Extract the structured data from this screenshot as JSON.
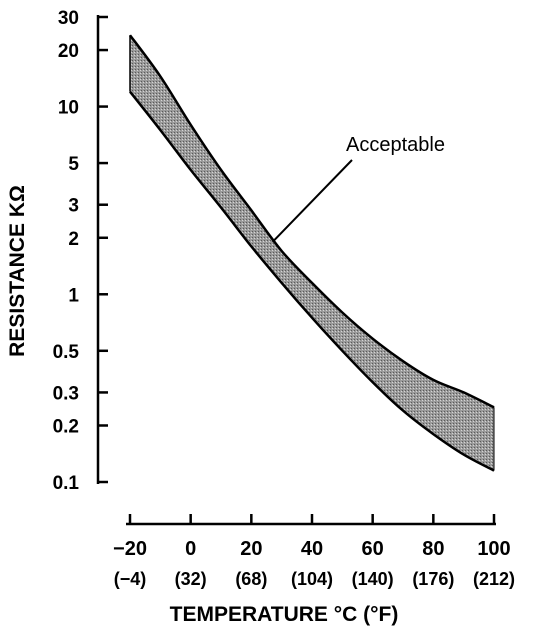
{
  "chart_data": {
    "type": "area",
    "ylabel": "RESISTANCE KΩ",
    "xlabel": "TEMPERATURE °C (°F)",
    "y_scale": "log",
    "ylim": [
      0.1,
      30
    ],
    "xlim": [
      -20,
      100
    ],
    "y_ticks": [
      {
        "value": 30,
        "label": "30"
      },
      {
        "value": 20,
        "label": "20"
      },
      {
        "value": 10,
        "label": "10"
      },
      {
        "value": 5,
        "label": "5"
      },
      {
        "value": 3,
        "label": "3"
      },
      {
        "value": 2,
        "label": "2"
      },
      {
        "value": 1,
        "label": "1"
      },
      {
        "value": 0.5,
        "label": "0.5"
      },
      {
        "value": 0.3,
        "label": "0.3"
      },
      {
        "value": 0.2,
        "label": "0.2"
      },
      {
        "value": 0.1,
        "label": "0.1"
      }
    ],
    "x_ticks": [
      {
        "value": -20,
        "label": "−20",
        "sublabel": "(−4)"
      },
      {
        "value": 0,
        "label": "0",
        "sublabel": "(32)"
      },
      {
        "value": 20,
        "label": "20",
        "sublabel": "(68)"
      },
      {
        "value": 40,
        "label": "40",
        "sublabel": "(104)"
      },
      {
        "value": 60,
        "label": "60",
        "sublabel": "(140)"
      },
      {
        "value": 80,
        "label": "80",
        "sublabel": "(176)"
      },
      {
        "value": 100,
        "label": "100",
        "sublabel": "(212)"
      }
    ],
    "series": [
      {
        "role": "upper",
        "x": [
          -20,
          -10,
          0,
          10,
          20,
          30,
          40,
          50,
          60,
          70,
          80,
          90,
          100
        ],
        "y": [
          24,
          14.5,
          8,
          4.6,
          2.8,
          1.7,
          1.15,
          0.8,
          0.58,
          0.44,
          0.35,
          0.3,
          0.25
        ]
      },
      {
        "role": "lower",
        "x": [
          -20,
          -10,
          0,
          10,
          20,
          30,
          40,
          50,
          60,
          70,
          80,
          90,
          100
        ],
        "y": [
          12,
          7.5,
          4.6,
          2.9,
          1.8,
          1.15,
          0.75,
          0.5,
          0.34,
          0.24,
          0.18,
          0.14,
          0.115
        ]
      }
    ],
    "annotations": [
      {
        "text": "Acceptable",
        "points_to": {
          "x": 27,
          "y": 1.9
        }
      }
    ],
    "fill_color": "#8a8a8a",
    "line_color": "#000000",
    "grid": false
  }
}
